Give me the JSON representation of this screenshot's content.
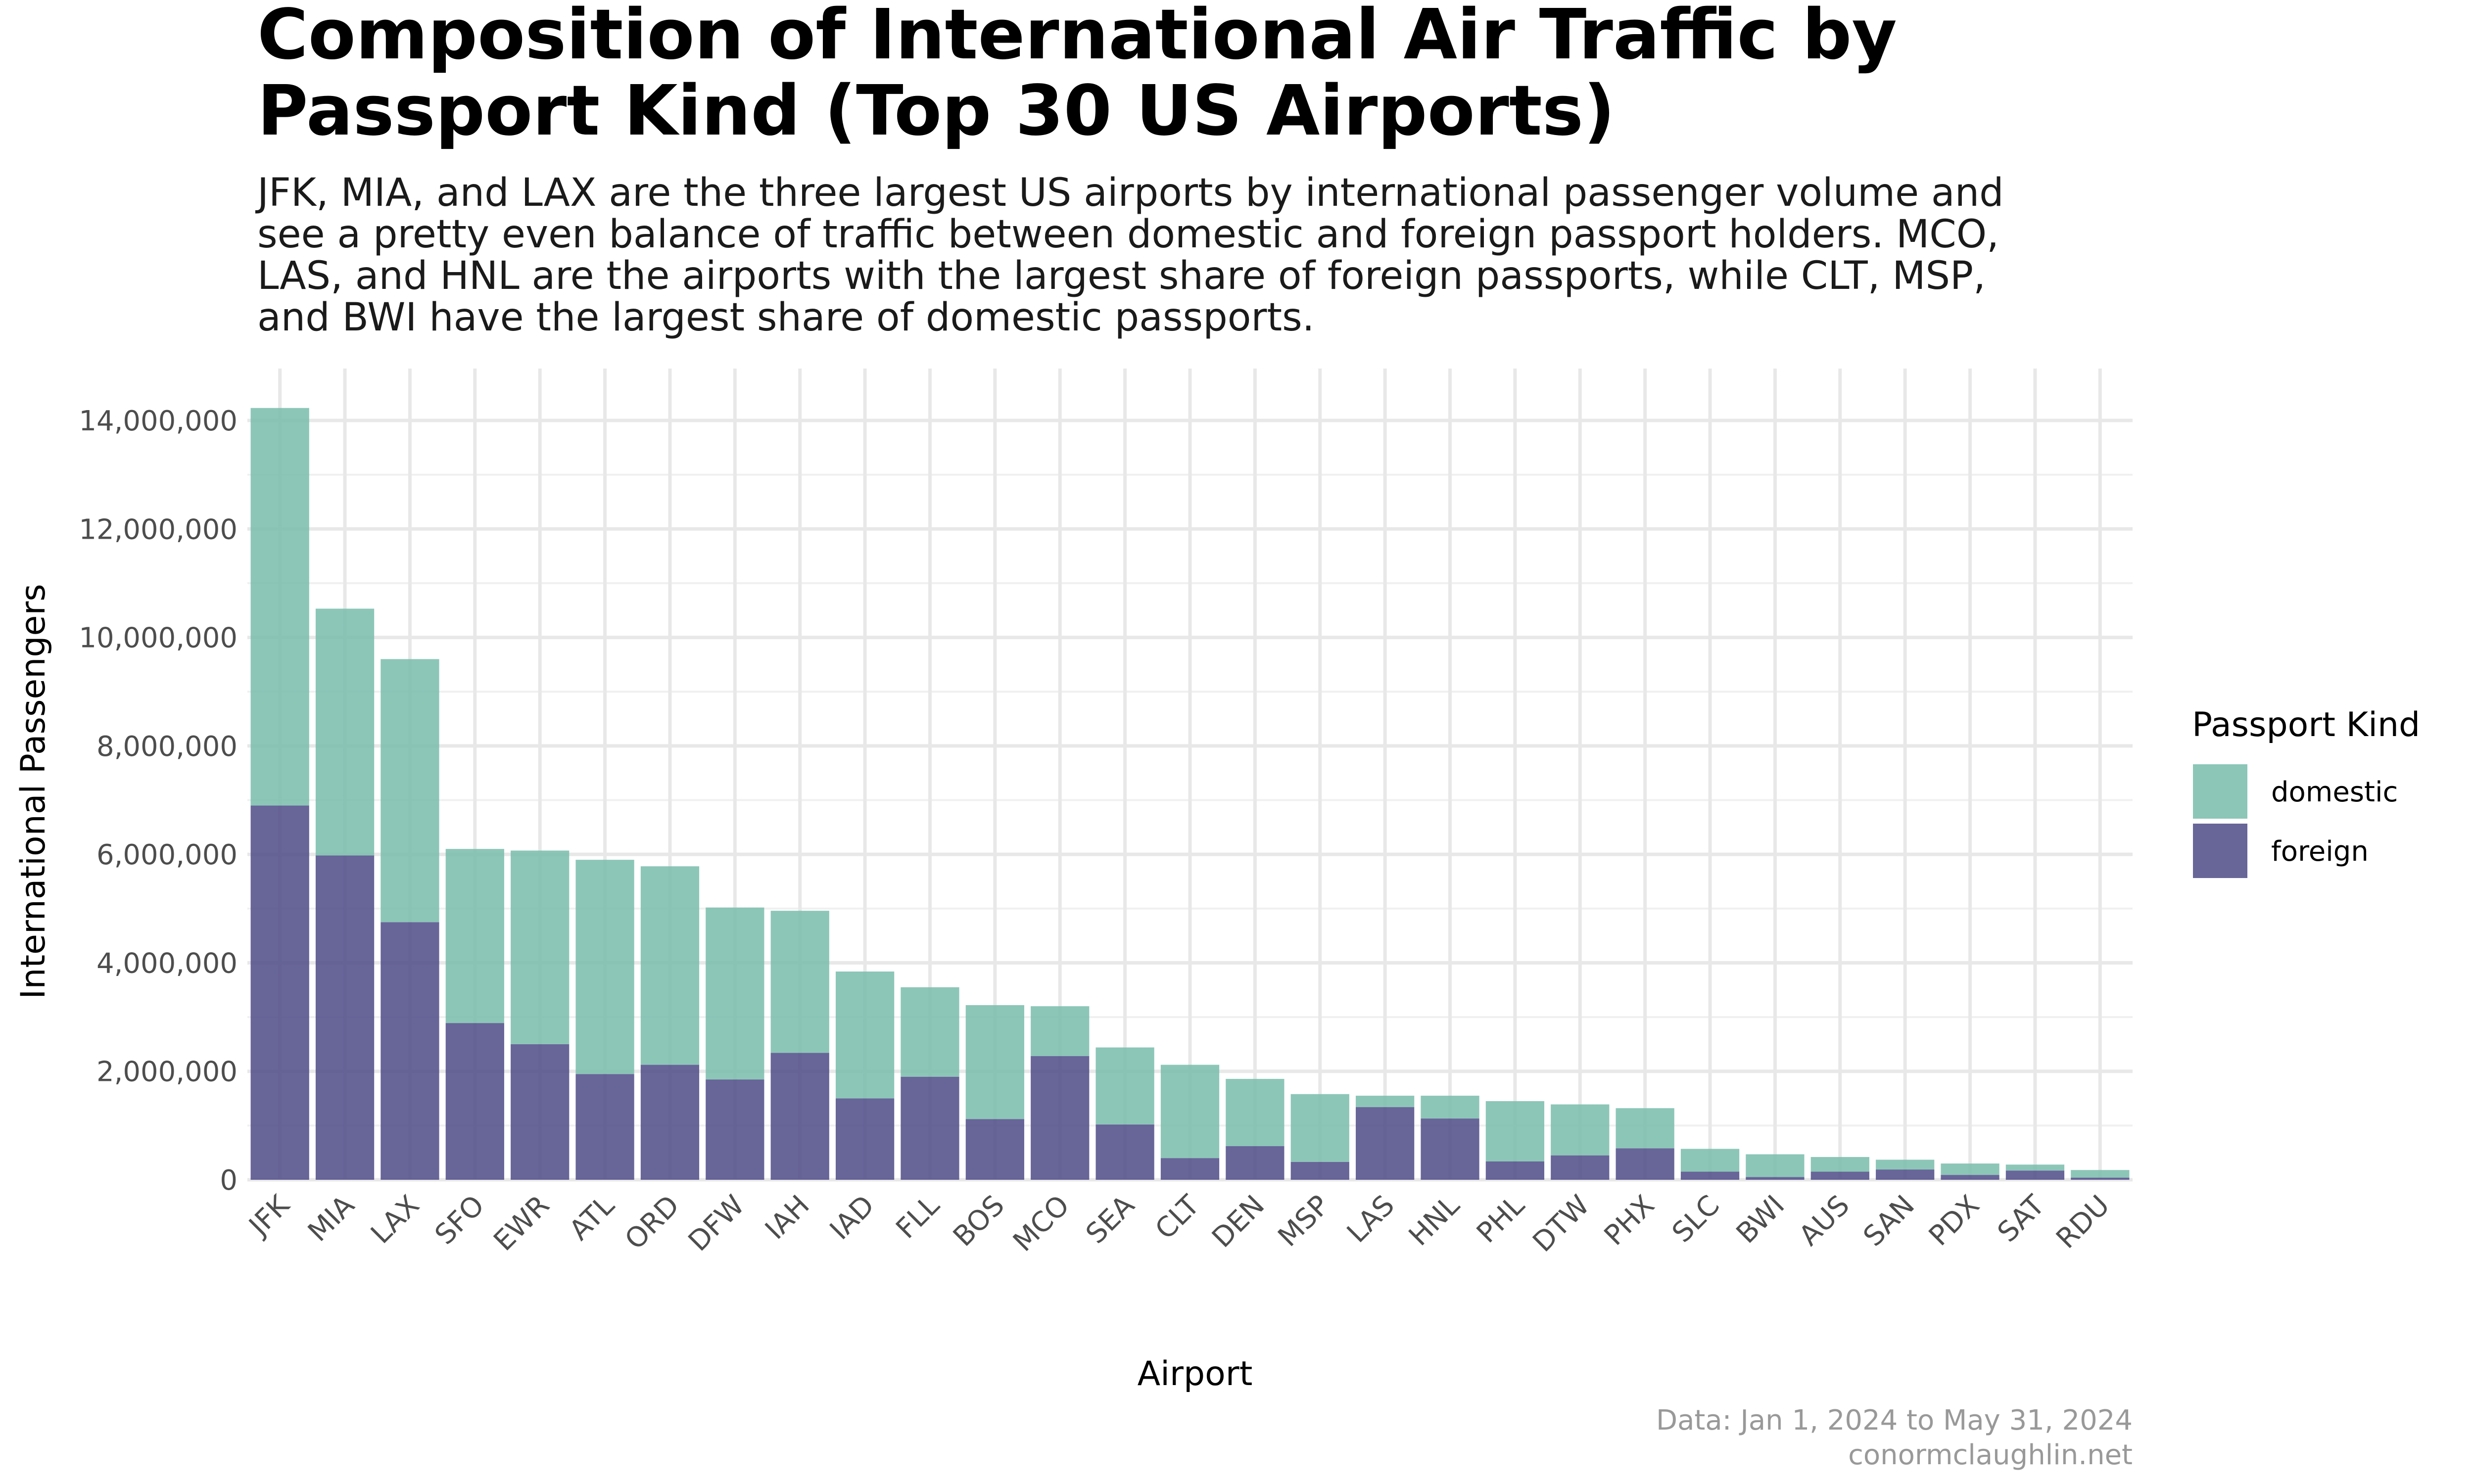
{
  "chart_data": {
    "type": "bar",
    "stacked": true,
    "title_lines": [
      "Composition of International Air Traffic by",
      "Passport Kind (Top 30 US Airports)"
    ],
    "subtitle_lines": [
      "JFK, MIA, and LAX are the three largest US airports by international passenger volume and",
      "see a pretty even balance of traffic between domestic and foreign passport holders. MCO,",
      "LAS, and HNL are the airports with the largest share of foreign passports, while CLT, MSP,",
      "and BWI have the largest share of domestic passports."
    ],
    "xlabel": "Airport",
    "ylabel": "International Passengers",
    "ylim": [
      0,
      14000000
    ],
    "yticks": [
      0,
      2000000,
      4000000,
      6000000,
      8000000,
      10000000,
      12000000,
      14000000
    ],
    "ytick_labels": [
      "0",
      "2,000,000",
      "4,000,000",
      "6,000,000",
      "8,000,000",
      "10,000,000",
      "12,000,000",
      "14,000,000"
    ],
    "legend_title": "Passport Kind",
    "legend_position": "right",
    "categories": [
      "JFK",
      "MIA",
      "LAX",
      "SFO",
      "EWR",
      "ATL",
      "ORD",
      "DFW",
      "IAH",
      "IAD",
      "FLL",
      "BOS",
      "MCO",
      "SEA",
      "CLT",
      "DEN",
      "MSP",
      "LAS",
      "HNL",
      "PHL",
      "DTW",
      "PHX",
      "SLC",
      "BWI",
      "AUS",
      "SAN",
      "PDX",
      "SAT",
      "RDU"
    ],
    "series": [
      {
        "name": "foreign",
        "color": "#4e4a87",
        "values": [
          6900000,
          5980000,
          4750000,
          2890000,
          2500000,
          1950000,
          2120000,
          1850000,
          2340000,
          1500000,
          1900000,
          1120000,
          2280000,
          1020000,
          400000,
          620000,
          330000,
          1340000,
          1130000,
          340000,
          450000,
          580000,
          150000,
          50000,
          150000,
          190000,
          90000,
          170000,
          40000
        ]
      },
      {
        "name": "domestic",
        "color": "#78bcaa",
        "values": [
          7330000,
          4550000,
          4850000,
          3210000,
          3570000,
          3950000,
          3660000,
          3170000,
          2620000,
          2340000,
          1650000,
          2100000,
          920000,
          1420000,
          1720000,
          1240000,
          1250000,
          210000,
          420000,
          1110000,
          940000,
          740000,
          420000,
          420000,
          270000,
          180000,
          210000,
          110000,
          140000
        ]
      }
    ],
    "caption_lines": [
      "Data: Jan 1, 2024 to May 31, 2024",
      "conormclaughlin.net"
    ]
  }
}
